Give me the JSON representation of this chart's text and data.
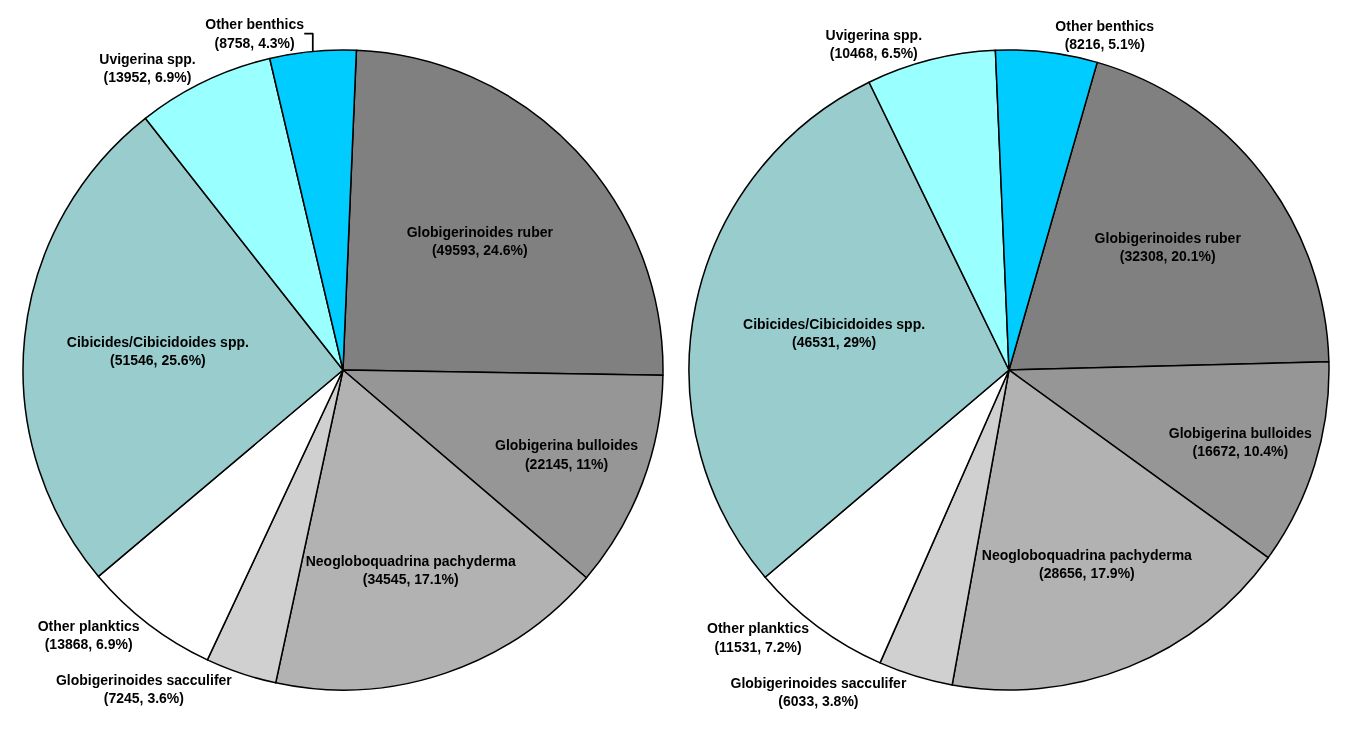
{
  "chart_data": [
    {
      "type": "pie",
      "categories": [
        "Globigerinoides ruber",
        "Globigerina bulloides",
        "Neogloboquadrina pachyderma",
        "Globigerinoides sacculifer",
        "Other planktics",
        "Cibicides/Cibicidoides spp.",
        "Uvigerina spp.",
        "Other benthics"
      ],
      "values": [
        49593,
        22145,
        34545,
        7245,
        13868,
        51546,
        13952,
        8758
      ],
      "value_labels": [
        "(49593, 24.6%)",
        "(22145, 11%)",
        "(34545, 17.1%)",
        "(7245, 3.6%)",
        "(13868, 6.9%)",
        "(51546, 25.6%)",
        "(13952, 6.9%)",
        "(8758, 4.3%)"
      ],
      "colors": [
        "#808080",
        "#969696",
        "#b2b2b2",
        "#d0d0d0",
        "#ffffff",
        "#99cccc",
        "#99ffff",
        "#00ccff"
      ],
      "legend": false
    },
    {
      "type": "pie",
      "categories": [
        "Globigerinoides ruber",
        "Globigerina bulloides",
        "Neogloboquadrina pachyderma",
        "Globigerinoides sacculifer",
        "Other planktics",
        "Cibicides/Cibicidoides spp.",
        "Uvigerina spp.",
        "Other benthics"
      ],
      "values": [
        32308,
        16672,
        28656,
        6033,
        11531,
        46531,
        10468,
        8216
      ],
      "value_labels": [
        "(32308, 20.1%)",
        "(16672, 10.4%)",
        "(28656, 17.9%)",
        "(6033, 3.8%)",
        "(11531, 7.2%)",
        "(46531, 29%)",
        "(10468, 6.5%)",
        "(8216, 5.1%)"
      ],
      "colors": [
        "#808080",
        "#969696",
        "#b2b2b2",
        "#d0d0d0",
        "#ffffff",
        "#99cccc",
        "#99ffff",
        "#00ccff"
      ],
      "legend": false
    }
  ]
}
